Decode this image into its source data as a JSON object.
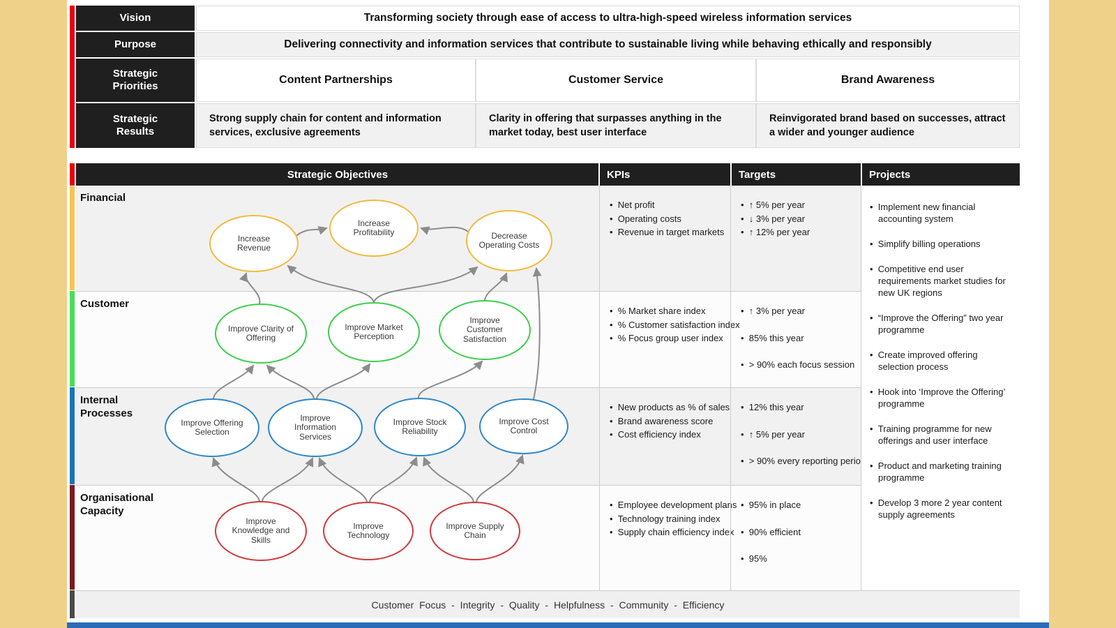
{
  "top_table": {
    "vision": {
      "label": "Vision",
      "value": "Transforming society through ease of access to ultra-high-speed wireless information services"
    },
    "purpose": {
      "label": "Purpose",
      "value": "Delivering connectivity and information services that contribute to sustainable living while behaving ethically and responsibly"
    },
    "strategic_priorities": {
      "label": "Strategic Priorities",
      "cells": [
        "Content Partnerships",
        "Customer Service",
        "Brand Awareness"
      ]
    },
    "strategic_results": {
      "label": "Strategic Results",
      "cells": [
        "Strong supply chain for content and information services, exclusive agreements",
        "Clarity in offering that surpasses anything in the market today, best user interface",
        "Reinvigorated brand based on successes, attract a wider and younger audience"
      ]
    }
  },
  "scorecard": {
    "headers": {
      "objectives": "Strategic Objectives",
      "kpis": "KPIs",
      "targets": "Targets",
      "projects": "Projects"
    },
    "perspectives": [
      {
        "name": "Financial",
        "bar_color": "#F5C455",
        "kpis": [
          "Net profit",
          "Operating costs",
          "Revenue in target markets"
        ],
        "targets": [
          "↑ 5% per year",
          "↓ 3% per year",
          "↑ 12% per year"
        ]
      },
      {
        "name": "Customer",
        "bar_color": "#4ADE57",
        "kpis": [
          "% Market share index",
          "% Customer satisfaction index",
          "% Focus group user index"
        ],
        "targets": [
          "↑ 3% per year",
          "85% this year",
          "> 90% each focus session"
        ]
      },
      {
        "name": "Internal Processes",
        "bar_color": "#1C74BC",
        "kpis": [
          "New products as % of sales",
          "Brand awareness score",
          "Cost efficiency index"
        ],
        "targets": [
          "12% this year",
          "↑ 5% per year",
          "> 90% every reporting period"
        ]
      },
      {
        "name": "Organisational Capacity",
        "bar_color": "#7B1B1E",
        "kpis": [
          "Employee development plans",
          "Technology training index",
          "Supply chain efficiency index"
        ],
        "targets": [
          "95% in place",
          "90% efficient",
          "95%"
        ]
      }
    ],
    "projects": [
      "Implement new financial accounting system",
      "Simplify billing operations",
      "Competitive end user requirements market studies for new UK regions",
      "“Improve the Offering” two year programme",
      "Create improved offering selection process",
      "Hook into ‘Improve the Offering’ programme",
      "Training programme for new offerings and user interface",
      "Product and marketing training programme",
      "Develop 3 more 2 year content supply agreements"
    ],
    "values": [
      "Customer Focus",
      "Integrity",
      "Quality",
      "Helpfulness",
      "Community",
      "Efficiency"
    ]
  },
  "strategy_map": {
    "nodes": [
      {
        "id": "increase-revenue",
        "label": "Increase Revenue",
        "perspective": "financial"
      },
      {
        "id": "increase-profitability",
        "label": "Increase Profitability",
        "perspective": "financial"
      },
      {
        "id": "decrease-operating-costs",
        "label": "Decrease Operating Costs",
        "perspective": "financial"
      },
      {
        "id": "improve-clarity-of-offering",
        "label": "Improve Clarity of Offering",
        "perspective": "customer"
      },
      {
        "id": "improve-market-perception",
        "label": "Improve Market Perception",
        "perspective": "customer"
      },
      {
        "id": "improve-customer-satisfaction",
        "label": "Improve Customer Satisfaction",
        "perspective": "customer"
      },
      {
        "id": "improve-offering-selection",
        "label": "Improve Offering Selection",
        "perspective": "internal"
      },
      {
        "id": "improve-information-services",
        "label": "Improve Information Services",
        "perspective": "internal"
      },
      {
        "id": "improve-stock-reliability",
        "label": "Improve Stock Reliability",
        "perspective": "internal"
      },
      {
        "id": "improve-cost-control",
        "label": "Improve Cost Control",
        "perspective": "internal"
      },
      {
        "id": "improve-knowledge-and-skills",
        "label": "Improve Knowledge and Skills",
        "perspective": "organisational"
      },
      {
        "id": "improve-technology",
        "label": "Improve Technology",
        "perspective": "organisational"
      },
      {
        "id": "improve-supply-chain",
        "label": "Improve Supply Chain",
        "perspective": "organisational"
      }
    ],
    "edges": [
      {
        "from": "increase-revenue",
        "to": "increase-profitability"
      },
      {
        "from": "decrease-operating-costs",
        "to": "increase-profitability"
      },
      {
        "from": "improve-clarity-of-offering",
        "to": "increase-revenue"
      },
      {
        "from": "improve-market-perception",
        "to": "increase-revenue"
      },
      {
        "from": "improve-market-perception",
        "to": "decrease-operating-costs"
      },
      {
        "from": "improve-customer-satisfaction",
        "to": "decrease-operating-costs"
      },
      {
        "from": "improve-cost-control",
        "to": "decrease-operating-costs"
      },
      {
        "from": "improve-offering-selection",
        "to": "improve-clarity-of-offering"
      },
      {
        "from": "improve-information-services",
        "to": "improve-clarity-of-offering"
      },
      {
        "from": "improve-information-services",
        "to": "improve-market-perception"
      },
      {
        "from": "improve-stock-reliability",
        "to": "improve-customer-satisfaction"
      },
      {
        "from": "improve-knowledge-and-skills",
        "to": "improve-offering-selection"
      },
      {
        "from": "improve-knowledge-and-skills",
        "to": "improve-information-services"
      },
      {
        "from": "improve-technology",
        "to": "improve-information-services"
      },
      {
        "from": "improve-technology",
        "to": "improve-stock-reliability"
      },
      {
        "from": "improve-supply-chain",
        "to": "improve-stock-reliability"
      },
      {
        "from": "improve-supply-chain",
        "to": "improve-cost-control"
      }
    ]
  }
}
